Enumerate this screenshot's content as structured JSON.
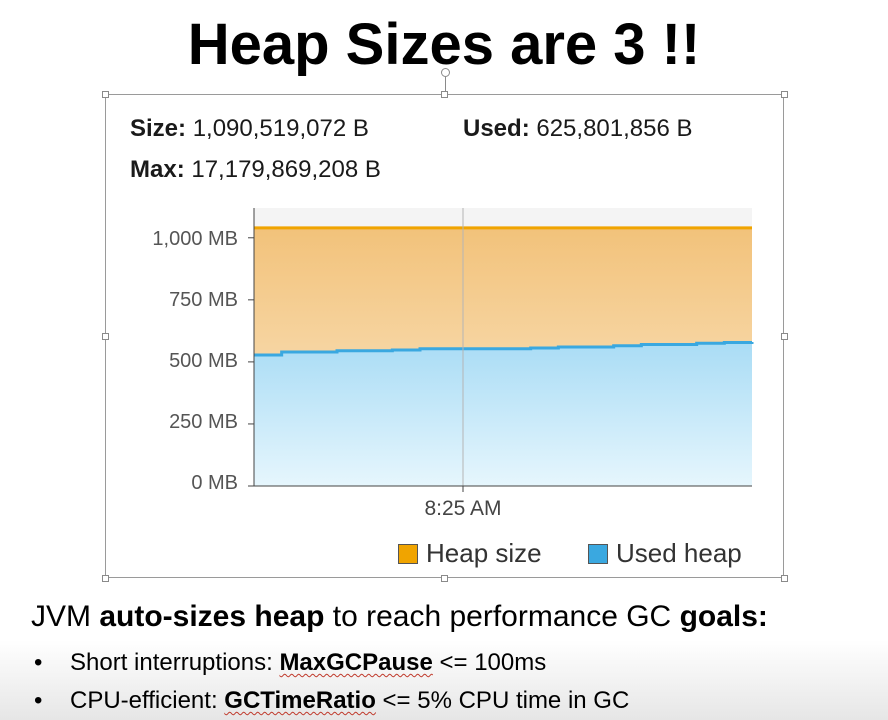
{
  "slide": {
    "title": "Heap Sizes are 3 !!"
  },
  "stats": {
    "size_label": "Size:",
    "size_value": "1,090,519,072 B",
    "used_label": "Used:",
    "used_value": "625,801,856 B",
    "max_label": "Max:",
    "max_value": "17,179,869,208 B"
  },
  "chart_data": {
    "type": "area",
    "title": "",
    "y_ticks": [
      "1,000 MB",
      "750 MB",
      "500 MB",
      "250 MB",
      "0 MB"
    ],
    "y_tick_values": [
      1000,
      750,
      500,
      250,
      0
    ],
    "ylim": [
      0,
      1120
    ],
    "x_tick_label": "8:25 AM",
    "colors": {
      "heap_size": "#f0a400",
      "used_heap": "#3aa8e0"
    },
    "series": [
      {
        "name": "Heap size",
        "values": [
          1040,
          1040,
          1040,
          1040,
          1040,
          1040,
          1040,
          1040,
          1040,
          1040,
          1040,
          1040,
          1040,
          1040,
          1040,
          1040,
          1040,
          1040,
          1040
        ]
      },
      {
        "name": "Used heap",
        "values": [
          528,
          540,
          540,
          545,
          545,
          548,
          553,
          553,
          553,
          553,
          556,
          560,
          560,
          565,
          570,
          570,
          575,
          578,
          580
        ]
      }
    ]
  },
  "legend": {
    "heap_size": "Heap size",
    "used_heap": "Used heap"
  },
  "text": {
    "line1_pre": "JVM ",
    "line1_bold1": "auto-sizes heap",
    "line1_mid": " to reach performance GC ",
    "line1_bold2": "goals:",
    "bullet_char": "•",
    "b1_pre": "Short interruptions: ",
    "b1_bold": "MaxGCPause",
    "b1_post": " <= 100ms",
    "b2_pre": "CPU-efficient: ",
    "b2_bold": "GCTimeRatio",
    "b2_post": " <= 5% CPU time in GC"
  }
}
